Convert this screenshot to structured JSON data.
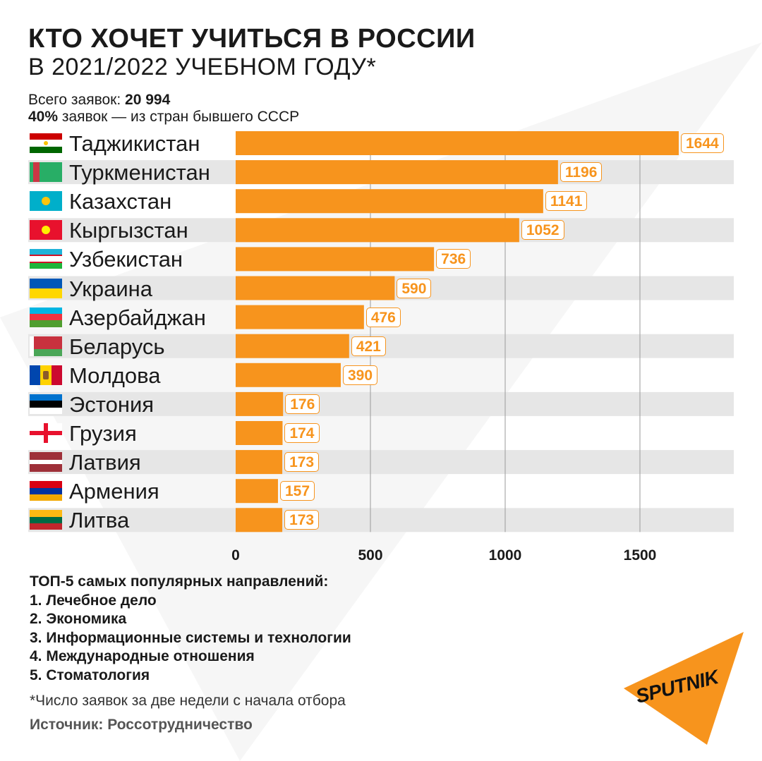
{
  "header": {
    "title": "КТО ХОЧЕТ УЧИТЬСЯ В РОССИИ",
    "subtitle": "В 2021/2022 УЧЕБНОМ ГОДУ*",
    "total_label": "Всего заявок: ",
    "total_value": "20 994",
    "share_value": "40%",
    "share_label": " заявок — из стран бывшего СССР"
  },
  "colors": {
    "bar": "#f7941d",
    "row_stripe": "#e6e6e6",
    "gridline": "#9a9a9a"
  },
  "chart_data": {
    "type": "bar",
    "orientation": "horizontal",
    "categories": [
      "Таджикистан",
      "Туркменистан",
      "Казахстан",
      "Кыргызстан",
      "Узбекистан",
      "Украина",
      "Азербайджан",
      "Беларусь",
      "Молдова",
      "Эстония",
      "Грузия",
      "Латвия",
      "Армения",
      "Литва"
    ],
    "values": [
      1644,
      1196,
      1141,
      1052,
      736,
      590,
      476,
      421,
      390,
      176,
      174,
      173,
      157,
      173
    ],
    "value_labels": [
      "1644",
      "1196",
      "1141",
      "1052",
      "736",
      "590",
      "476",
      "421",
      "390",
      "176",
      "174",
      "173",
      "157",
      "173"
    ],
    "xticks": [
      0,
      500,
      1000,
      1500
    ],
    "xtick_labels": [
      "0",
      "500",
      "1000",
      "1500"
    ],
    "xlim": [
      0,
      1850
    ],
    "grid": "vertical",
    "flags": [
      "tajikistan-flag",
      "turkmenistan-flag",
      "kazakhstan-flag",
      "kyrgyzstan-flag",
      "uzbekistan-flag",
      "ukraine-flag",
      "azerbaijan-flag",
      "belarus-flag",
      "moldova-flag",
      "estonia-flag",
      "georgia-flag",
      "latvia-flag",
      "armenia-flag",
      "lithuania-flag"
    ]
  },
  "notes": {
    "title": "ТОП-5 самых популярных направлений:",
    "items": [
      "1. Лечебное дело",
      "2. Экономика",
      "3. Информационные системы и технологии",
      "4. Международные отношения",
      "5. Стоматология"
    ]
  },
  "footnote": "*Число заявок за две недели с начала отбора",
  "source": "Источник: Россотрудничество",
  "logo": {
    "text": "SPUTNIK",
    "icon": "sputnik-logo-icon"
  }
}
